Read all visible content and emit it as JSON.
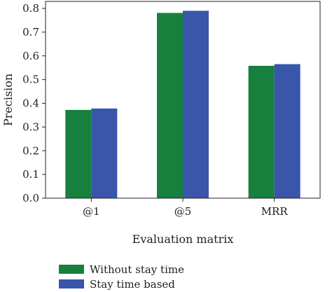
{
  "chart_data": {
    "type": "bar",
    "categories": [
      "@1",
      "@5",
      "MRR"
    ],
    "series": [
      {
        "name": "Without stay time",
        "color": "#16803c",
        "values": [
          0.372,
          0.781,
          0.558
        ]
      },
      {
        "name": "Stay time based",
        "color": "#3a56aa",
        "values": [
          0.378,
          0.79,
          0.565
        ]
      }
    ],
    "xlabel": "Evaluation matrix",
    "ylabel": "Precision",
    "ylim": [
      0,
      0.8
    ],
    "yticks": [
      "0.0",
      "0.1",
      "0.2",
      "0.3",
      "0.4",
      "0.5",
      "0.6",
      "0.7",
      "0.8"
    ],
    "grid": false,
    "legend_position": "bottom-left"
  }
}
